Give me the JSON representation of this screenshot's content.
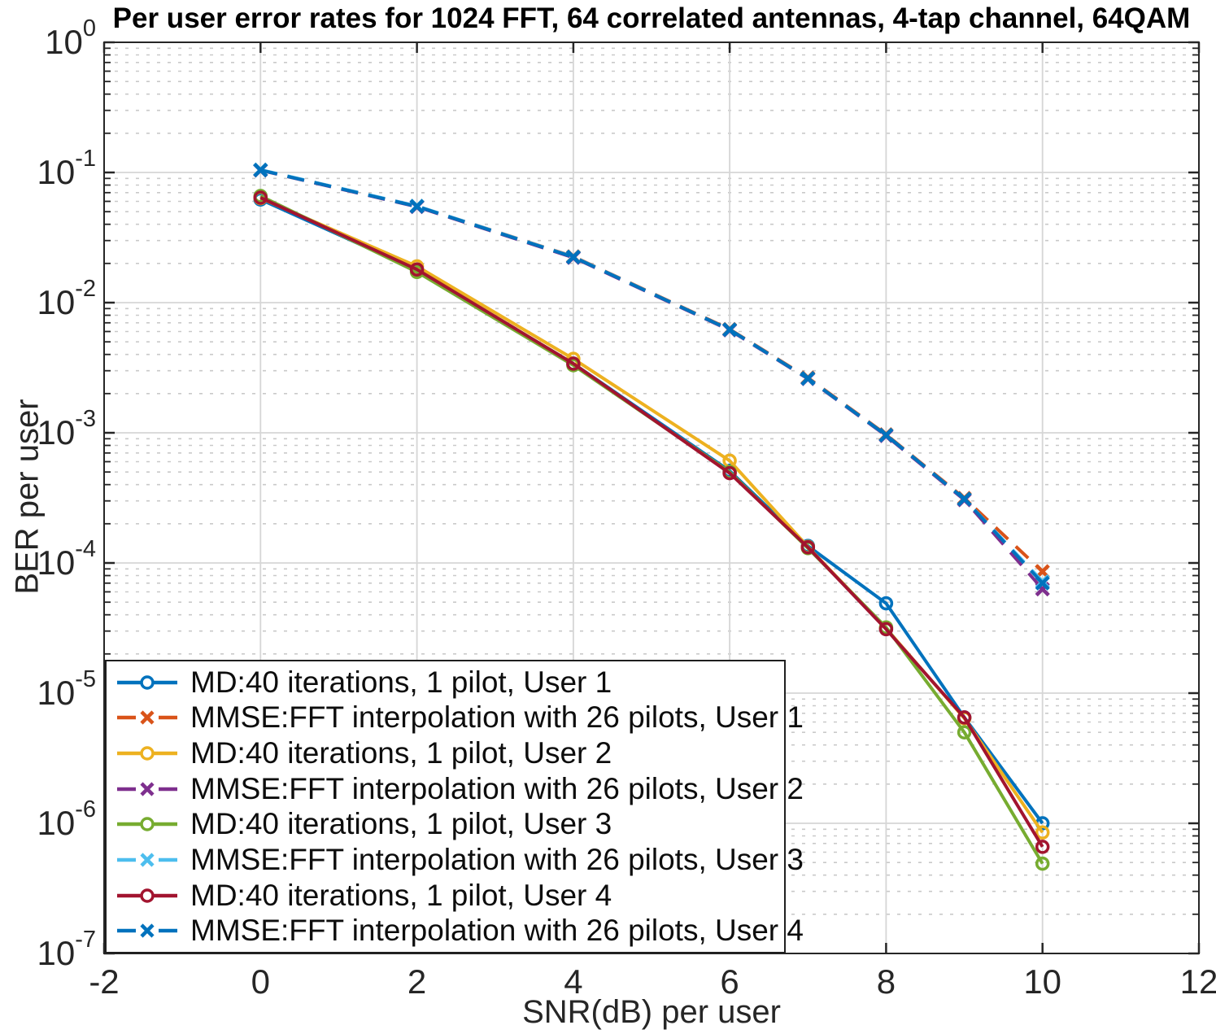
{
  "figure": {
    "background": "#ffffff",
    "axis_color": "#262626",
    "grid_major_color": "#d6d6d6",
    "grid_minor_color": "#c9c9c9",
    "legend_border_color": "#1f1f1f"
  },
  "chart_data": {
    "type": "line",
    "title": "Per user error rates for 1024 FFT, 64 correlated antennas, 4-tap channel, 64QAM",
    "xlabel": "SNR(dB) per user",
    "ylabel": "BER per user",
    "x_scale": "linear",
    "y_scale": "log",
    "xlim": [
      -2,
      12
    ],
    "ylim": [
      1e-07,
      1
    ],
    "x_ticks": [
      -2,
      0,
      2,
      4,
      6,
      8,
      10,
      12
    ],
    "y_tick_exponents": [
      0,
      -1,
      -2,
      -3,
      -4,
      -5,
      -6,
      -7
    ],
    "grid": {
      "major": true,
      "minor_y_dotted": true
    },
    "legend_position": "southwest",
    "x": [
      0,
      2,
      4,
      6,
      7,
      8,
      9,
      10
    ],
    "series": [
      {
        "name": "MD:40 iterations, 1 pilot, User 1",
        "color": "#0072BD",
        "line": "solid",
        "marker": "circle",
        "values": [
          0.062,
          0.0178,
          0.0034,
          0.00051,
          0.000135,
          4.9e-05,
          6.5e-06,
          1e-06
        ]
      },
      {
        "name": "MMSE:FFT interpolation with 26 pilots, User 1",
        "color": "#D95319",
        "line": "dashed",
        "marker": "x",
        "values": [
          0.1045,
          0.0551,
          0.0226,
          0.00625,
          0.00265,
          0.00097,
          0.000315,
          8.6e-05
        ]
      },
      {
        "name": "MD:40 iterations, 1 pilot, User 2",
        "color": "#EDB120",
        "line": "solid",
        "marker": "circle",
        "values": [
          0.0635,
          0.019,
          0.0037,
          0.00061,
          0.000133,
          3.15e-05,
          6.4e-06,
          8.5e-07
        ]
      },
      {
        "name": "MMSE:FFT interpolation with 26 pilots, User 2",
        "color": "#7E2F8E",
        "line": "dashed",
        "marker": "x",
        "values": [
          0.104,
          0.0545,
          0.0222,
          0.00615,
          0.0026,
          0.00095,
          0.000305,
          6.3e-05
        ]
      },
      {
        "name": "MD:40 iterations, 1 pilot, User 3",
        "color": "#77AC30",
        "line": "solid",
        "marker": "circle",
        "values": [
          0.066,
          0.0172,
          0.0033,
          0.0005,
          0.00013,
          3.2e-05,
          5e-06,
          4.9e-07
        ]
      },
      {
        "name": "MMSE:FFT interpolation with 26 pilots, User 3",
        "color": "#4DBEEE",
        "line": "dashed",
        "marker": "x",
        "values": [
          0.1048,
          0.0553,
          0.0225,
          0.0062,
          0.00262,
          0.00096,
          0.00031,
          7.2e-05
        ]
      },
      {
        "name": "MD:40 iterations, 1 pilot, User 4",
        "color": "#A2142F",
        "line": "solid",
        "marker": "circle",
        "values": [
          0.064,
          0.018,
          0.0034,
          0.00049,
          0.000132,
          3.1e-05,
          6.5e-06,
          6.6e-07
        ]
      },
      {
        "name": "MMSE:FFT interpolation with 26 pilots, User 4",
        "color": "#0072BD",
        "line": "dashed",
        "marker": "x",
        "values": [
          0.1043,
          0.0549,
          0.0224,
          0.0062,
          0.00262,
          0.00096,
          0.00031,
          7e-05
        ]
      }
    ]
  }
}
